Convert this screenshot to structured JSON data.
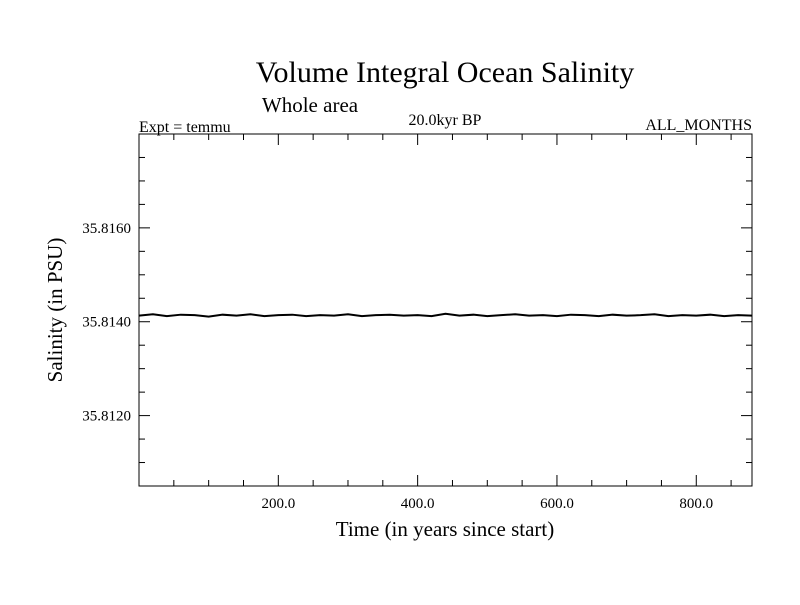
{
  "chart_data": {
    "type": "line",
    "title": "Volume Integral Ocean Salinity",
    "subtitle": "Whole area",
    "annotations": {
      "left": "Expt = temmu",
      "center": "20.0kyr BP",
      "right": "ALL_MONTHS"
    },
    "xlabel": "Time (in years since start)",
    "ylabel": "Salinity (in PSU)",
    "xlim": [
      0,
      880
    ],
    "ylim": [
      35.8105,
      35.818
    ],
    "x_ticks": [
      {
        "value": 200,
        "label": "200.0"
      },
      {
        "value": 400,
        "label": "400.0"
      },
      {
        "value": 600,
        "label": "600.0"
      },
      {
        "value": 800,
        "label": "800.0"
      }
    ],
    "y_ticks": [
      {
        "value": 35.812,
        "label": "35.8120"
      },
      {
        "value": 35.814,
        "label": "35.8140"
      },
      {
        "value": 35.816,
        "label": "35.8160"
      }
    ],
    "grid": false,
    "series": [
      {
        "color": "#000000",
        "x": [
          0,
          20,
          40,
          60,
          80,
          100,
          120,
          140,
          160,
          180,
          200,
          220,
          240,
          260,
          280,
          300,
          320,
          340,
          360,
          380,
          400,
          420,
          440,
          460,
          480,
          500,
          520,
          540,
          560,
          580,
          600,
          620,
          640,
          660,
          680,
          700,
          720,
          740,
          760,
          780,
          800,
          820,
          840,
          860,
          880
        ],
        "values": [
          35.81413,
          35.81416,
          35.81412,
          35.81415,
          35.81414,
          35.81411,
          35.81415,
          35.81413,
          35.81416,
          35.81412,
          35.81414,
          35.81415,
          35.81412,
          35.81414,
          35.81413,
          35.81416,
          35.81412,
          35.81414,
          35.81415,
          35.81413,
          35.81414,
          35.81412,
          35.81417,
          35.81413,
          35.81415,
          35.81412,
          35.81414,
          35.81416,
          35.81413,
          35.81414,
          35.81412,
          35.81415,
          35.81414,
          35.81412,
          35.81415,
          35.81413,
          35.81414,
          35.81416,
          35.81412,
          35.81414,
          35.81413,
          35.81415,
          35.81412,
          35.81414,
          35.81413
        ]
      }
    ]
  }
}
